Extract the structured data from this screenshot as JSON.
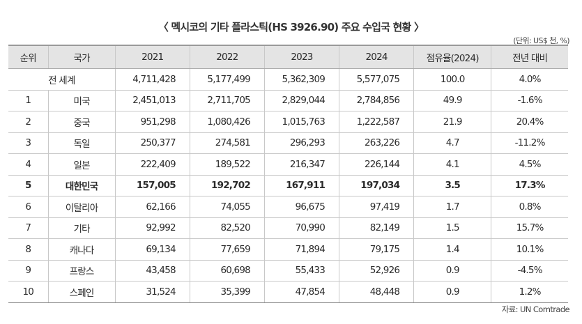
{
  "title": "〈 멕시코의 기타 플라스틱(HS 3926.90) 주요 수입국 현황 〉",
  "unit": "(단위: US$ 천, %)",
  "headers": [
    "순위",
    "국가",
    "2021",
    "2022",
    "2023",
    "2024",
    "점유율(2024)",
    "전년 대비"
  ],
  "rows": [
    {
      "rank": "",
      "country": "전 세계",
      "y2021": "4,711,428",
      "y2022": "5,177,499",
      "y2023": "5,362,309",
      "y2024": "5,577,075",
      "share": "100.0",
      "yoy": "4.0%"
    },
    {
      "rank": "1",
      "country": "미국",
      "y2021": "2,451,013",
      "y2022": "2,711,705",
      "y2023": "2,829,044",
      "y2024": "2,784,856",
      "share": "49.9",
      "yoy": "-1.6%"
    },
    {
      "rank": "2",
      "country": "중국",
      "y2021": "951,298",
      "y2022": "1,080,426",
      "y2023": "1,015,763",
      "y2024": "1,222,587",
      "share": "21.9",
      "yoy": "20.4%"
    },
    {
      "rank": "3",
      "country": "독일",
      "y2021": "250,377",
      "y2022": "274,581",
      "y2023": "296,293",
      "y2024": "263,226",
      "share": "4.7",
      "yoy": "-11.2%"
    },
    {
      "rank": "4",
      "country": "일본",
      "y2021": "222,409",
      "y2022": "189,522",
      "y2023": "216,347",
      "y2024": "226,144",
      "share": "4.1",
      "yoy": "4.5%"
    },
    {
      "rank": "5",
      "country": "대한민국",
      "y2021": "157,005",
      "y2022": "192,702",
      "y2023": "167,911",
      "y2024": "197,034",
      "share": "3.5",
      "yoy": "17.3%"
    },
    {
      "rank": "6",
      "country": "이탈리아",
      "y2021": "62,166",
      "y2022": "74,055",
      "y2023": "96,675",
      "y2024": "97,419",
      "share": "1.7",
      "yoy": "0.8%"
    },
    {
      "rank": "7",
      "country": "기타",
      "y2021": "92,992",
      "y2022": "82,520",
      "y2023": "70,990",
      "y2024": "82,149",
      "share": "1.5",
      "yoy": "15.7%"
    },
    {
      "rank": "8",
      "country": "캐나다",
      "y2021": "69,134",
      "y2022": "77,659",
      "y2023": "71,894",
      "y2024": "79,175",
      "share": "1.4",
      "yoy": "10.1%"
    },
    {
      "rank": "9",
      "country": "프랑스",
      "y2021": "43,458",
      "y2022": "60,698",
      "y2023": "55,433",
      "y2024": "52,926",
      "share": "0.9",
      "yoy": "-4.5%"
    },
    {
      "rank": "10",
      "country": "스페인",
      "y2021": "31,524",
      "y2022": "35,399",
      "y2023": "47,854",
      "y2024": "48,448",
      "share": "0.9",
      "yoy": "1.2%"
    }
  ],
  "source": "자료: UN Comtrade"
}
